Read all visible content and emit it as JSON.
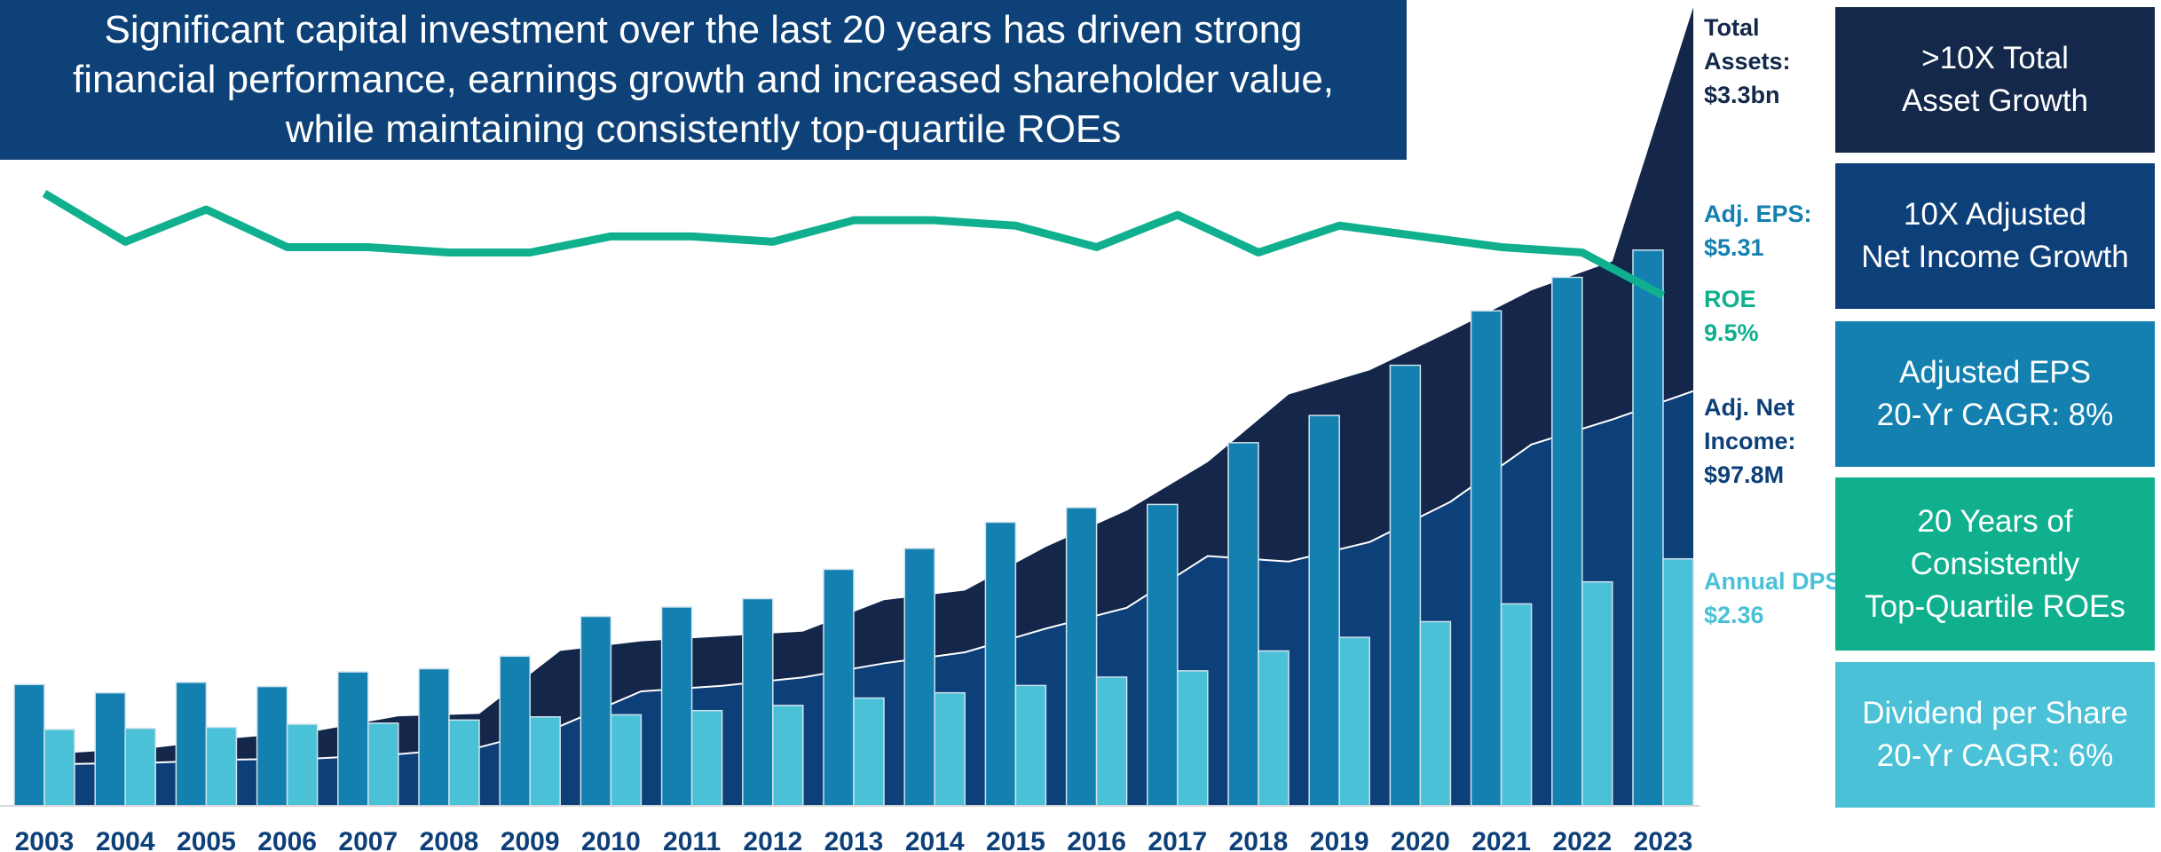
{
  "chart_data": {
    "type": "combo",
    "title": [
      "Significant capital investment over the last 20 years has driven strong",
      "financial performance, earnings growth and increased shareholder value,",
      "while maintaining consistently top-quartile ROEs"
    ],
    "categories": [
      "2003",
      "2004",
      "2005",
      "2006",
      "2007",
      "2008",
      "2009",
      "2010",
      "2011",
      "2012",
      "2013",
      "2014",
      "2015",
      "2016",
      "2017",
      "2018",
      "2019",
      "2020",
      "2021",
      "2022",
      "2023"
    ],
    "series": [
      {
        "name": "Total Assets:",
        "type": "area",
        "color": "#14264a",
        "ylim": [
          0,
          3.33
        ],
        "values": [
          0.22,
          0.24,
          0.28,
          0.31,
          0.37,
          0.38,
          0.64,
          0.68,
          0.7,
          0.72,
          0.85,
          0.89,
          1.07,
          1.22,
          1.42,
          1.7,
          1.8,
          1.96,
          2.13,
          2.25,
          3.3
        ],
        "value_labels": [
          null,
          null,
          null,
          null,
          null,
          null,
          null,
          null,
          null,
          null,
          null,
          null,
          null,
          null,
          null,
          null,
          null,
          null,
          null,
          null,
          "$3.3bn"
        ]
      },
      {
        "name": "Adj. EPS:",
        "type": "bar",
        "color": "#1380b0",
        "ylim": [
          0,
          7.7
        ],
        "values": [
          1.16,
          1.08,
          1.18,
          1.14,
          1.28,
          1.31,
          1.43,
          1.81,
          1.9,
          1.98,
          2.26,
          2.46,
          2.71,
          2.85,
          2.88,
          3.47,
          3.73,
          4.21,
          4.73,
          5.05,
          5.31
        ],
        "value_labels": [
          null,
          null,
          null,
          null,
          null,
          null,
          null,
          null,
          null,
          null,
          null,
          null,
          null,
          null,
          null,
          null,
          null,
          null,
          null,
          null,
          "$5.31"
        ]
      },
      {
        "name": "ROE",
        "type": "line",
        "color": "#10b08f",
        "ylim": [
          0,
          15
        ],
        "values": [
          11.4,
          10.5,
          11.1,
          10.4,
          10.4,
          10.3,
          10.3,
          10.6,
          10.6,
          10.5,
          10.9,
          10.9,
          10.8,
          10.4,
          11.0,
          10.3,
          10.8,
          10.6,
          10.4,
          10.3,
          9.5
        ],
        "value_labels": [
          null,
          null,
          null,
          null,
          null,
          null,
          null,
          null,
          null,
          null,
          null,
          null,
          null,
          null,
          null,
          null,
          null,
          null,
          null,
          null,
          "9.5%"
        ]
      },
      {
        "name": "Adj. Net Income:",
        "type": "area",
        "color": "#0d3f78",
        "ylim": [
          0,
          190
        ],
        "values": [
          9.9,
          10.2,
          10.9,
          11.2,
          12.2,
          13.8,
          18.8,
          27.0,
          28.3,
          30.3,
          33.6,
          36.2,
          41.8,
          46.7,
          58.9,
          57.6,
          62.2,
          71.7,
          85.2,
          91.1,
          97.8
        ],
        "value_labels": [
          null,
          null,
          null,
          null,
          null,
          null,
          null,
          null,
          null,
          null,
          null,
          null,
          null,
          null,
          null,
          null,
          null,
          null,
          null,
          null,
          "$97.8M"
        ]
      },
      {
        "name": "Annual DPS:",
        "type": "bar",
        "color": "#4ac1d6",
        "ylim": [
          0,
          7.7
        ],
        "values": [
          0.73,
          0.74,
          0.75,
          0.78,
          0.79,
          0.82,
          0.85,
          0.87,
          0.91,
          0.96,
          1.03,
          1.08,
          1.15,
          1.23,
          1.29,
          1.48,
          1.61,
          1.76,
          1.93,
          2.14,
          2.36
        ],
        "value_labels": [
          null,
          null,
          null,
          null,
          null,
          null,
          null,
          null,
          null,
          null,
          null,
          null,
          null,
          null,
          null,
          null,
          null,
          null,
          null,
          null,
          "$2.36"
        ]
      }
    ],
    "boxes": [
      {
        "color": "#13284a",
        "lines": [
          ">10X Total",
          "Asset Growth"
        ]
      },
      {
        "color": "#0d3f78",
        "lines": [
          "10X Adjusted",
          "Net Income Growth"
        ]
      },
      {
        "color": "#1380b0",
        "lines": [
          "Adjusted EPS",
          "20-Yr CAGR: 8%"
        ]
      },
      {
        "color": "#10b08f",
        "lines": [
          "20 Years of",
          "Consistently",
          "Top-Quartile ROEs"
        ]
      },
      {
        "color": "#4ac1d6",
        "lines": [
          "Dividend per Share",
          "20-Yr CAGR: 6%"
        ]
      }
    ]
  }
}
